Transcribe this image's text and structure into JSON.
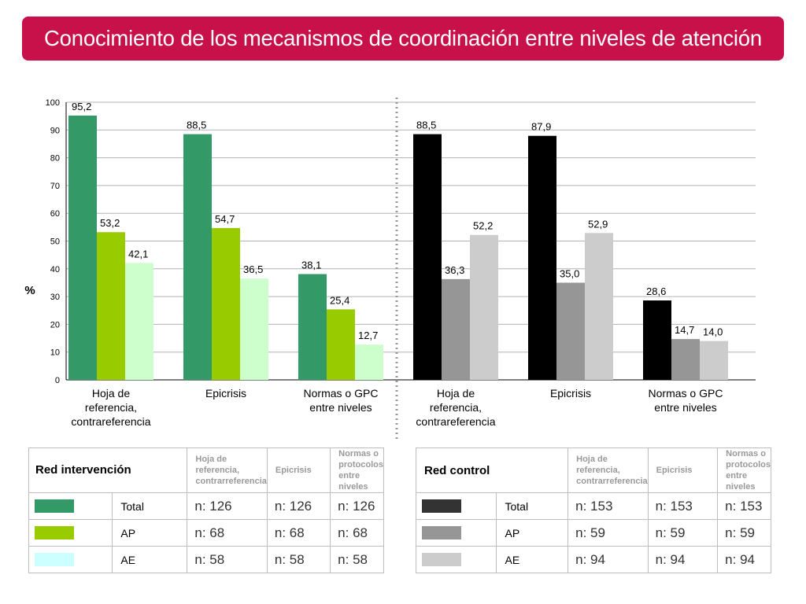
{
  "title": "Conocimiento de los mecanismos de coordinación entre niveles de atención",
  "chart_data": {
    "type": "bar",
    "ylabel": "%",
    "ylim": [
      0,
      100
    ],
    "yticks": [
      "0",
      "10",
      "20",
      "30",
      "40",
      "50",
      "60",
      "70",
      "80",
      "90",
      "100"
    ],
    "grid": true,
    "groups": [
      {
        "name": "Red intervención",
        "categories": [
          [
            "Hoja de",
            "referencia,",
            "contrareferencia"
          ],
          [
            "Epicrisis"
          ],
          [
            "Normas o GPC",
            "entre niveles"
          ]
        ],
        "series": [
          {
            "name": "Total",
            "color": "#339966",
            "values": [
              95.2,
              88.5,
              38.1
            ],
            "labels": [
              "95,2",
              "88,5",
              "38,1"
            ]
          },
          {
            "name": "AP",
            "color": "#99cc00",
            "values": [
              53.2,
              54.7,
              25.4
            ],
            "labels": [
              "53,2",
              "54,7",
              "25,4"
            ]
          },
          {
            "name": "AE",
            "color": "#ccffcc",
            "values": [
              42.1,
              36.5,
              12.7
            ],
            "labels": [
              "42,1",
              "36,5",
              "12,7"
            ]
          }
        ]
      },
      {
        "name": "Red control",
        "categories": [
          [
            "Hoja de",
            "referencia,",
            "contrareferencia"
          ],
          [
            "Epicrisis"
          ],
          [
            "Normas o GPC",
            "entre niveles"
          ]
        ],
        "series": [
          {
            "name": "Total",
            "color": "#000000",
            "values": [
              88.5,
              87.9,
              28.6
            ],
            "labels": [
              "88,5",
              "87,9",
              "28,6"
            ]
          },
          {
            "name": "AP",
            "color": "#969696",
            "values": [
              36.3,
              35.0,
              14.7
            ],
            "labels": [
              "36,3",
              "35,0",
              "14,7"
            ]
          },
          {
            "name": "AE",
            "color": "#cccccc",
            "values": [
              52.2,
              52.9,
              14.0
            ],
            "labels": [
              "52,2",
              "52,9",
              "14,0"
            ]
          }
        ]
      }
    ]
  },
  "tables": {
    "intervention": {
      "title": "Red intervención",
      "headers": [
        "Hoja de referencia, contrarreferencia",
        "Epicrisis",
        "Normas o protocolos entre niveles"
      ],
      "rows": [
        {
          "label": "Total",
          "color": "#339966",
          "values": [
            "n: 126",
            "n: 126",
            "n: 126"
          ]
        },
        {
          "label": "AP",
          "color": "#99cc00",
          "values": [
            "n: 68",
            "n: 68",
            "n: 68"
          ]
        },
        {
          "label": "AE",
          "color": "#ccffff",
          "values": [
            "n: 58",
            "n: 58",
            "n: 58"
          ]
        }
      ]
    },
    "control": {
      "title": "Red control",
      "headers": [
        "Hoja de referencia, contrarreferencia",
        "Epicrisis",
        "Normas o protocolos entre niveles"
      ],
      "rows": [
        {
          "label": "Total",
          "color": "#333333",
          "values": [
            "n: 153",
            "n: 153",
            "n: 153"
          ]
        },
        {
          "label": "AP",
          "color": "#969696",
          "values": [
            "n: 59",
            "n: 59",
            "n: 59"
          ]
        },
        {
          "label": "AE",
          "color": "#cccccc",
          "values": [
            "n: 94",
            "n: 94",
            "n: 94"
          ]
        }
      ]
    }
  }
}
